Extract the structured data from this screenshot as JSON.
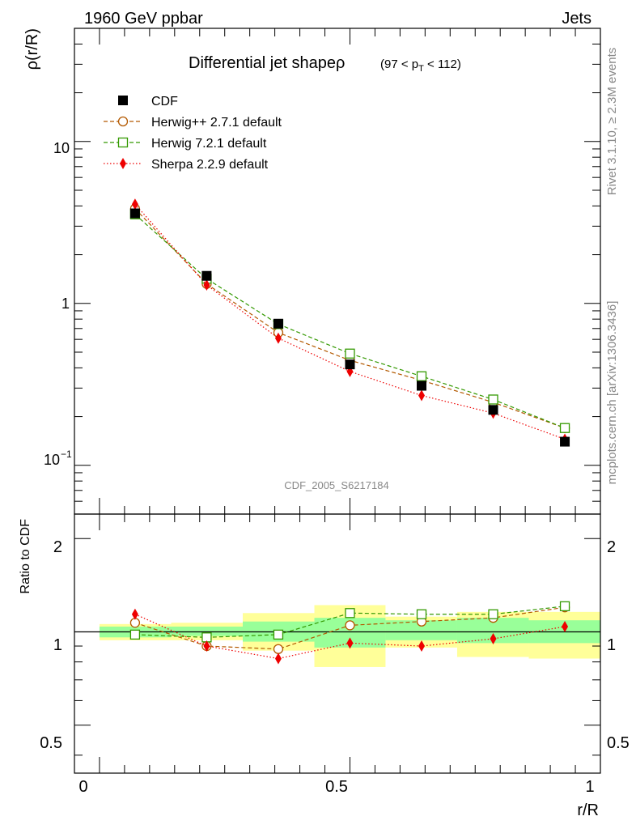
{
  "header": {
    "left": "1960 GeV ppbar",
    "right": "Jets"
  },
  "side": {
    "top": "Rivet 3.1.10, ≥ 2.3M events",
    "bottom": "mcplots.cern.ch [arXiv:1306.3436]"
  },
  "colors": {
    "cdf": "#000000",
    "herwigpp": "#b35900",
    "herwig7": "#339900",
    "sherpa": "#ee0000",
    "band_inner": "#99ff99",
    "band_outer": "#ffff99"
  },
  "chart_data": [
    {
      "type": "scatter",
      "title": "Differential jet shapeρ",
      "subtitle": {
        "main": "(97 < p",
        "sub": "T",
        "tail": " < 112)"
      },
      "ylabel": "ρ(r/R)",
      "xlabel": "r/R",
      "xlim": [
        -0.05,
        1.0
      ],
      "ylim": [
        0.05,
        50
      ],
      "yscale": "log",
      "yticks": [
        {
          "value": 10,
          "label": "10"
        },
        {
          "value": 1,
          "label": "1"
        },
        {
          "value": 0.1,
          "label": "10",
          "sup": "−1"
        }
      ],
      "watermark": "CDF_2005_S6217184",
      "x": [
        0.071,
        0.214,
        0.357,
        0.5,
        0.643,
        0.786,
        0.929
      ],
      "series": [
        {
          "key": "cdf",
          "name": "CDF",
          "values": [
            3.6,
            1.48,
            0.75,
            0.42,
            0.31,
            0.22,
            0.14
          ],
          "marker": "square-filled",
          "line": "none"
        },
        {
          "key": "herwigpp",
          "name": "Herwig++ 2.7.1 default",
          "values": [
            3.85,
            1.32,
            0.66,
            0.445,
            0.335,
            0.245,
            0.17
          ],
          "marker": "circle-open",
          "line": "dashed"
        },
        {
          "key": "herwig7",
          "name": "Herwig 7.2.1 default",
          "values": [
            3.55,
            1.42,
            0.745,
            0.49,
            0.355,
            0.255,
            0.17
          ],
          "marker": "square-open",
          "line": "dashed"
        },
        {
          "key": "sherpa",
          "name": "Sherpa 2.2.9 default",
          "values": [
            4.1,
            1.3,
            0.61,
            0.38,
            0.27,
            0.21,
            0.145
          ],
          "marker": "diamond-filled",
          "line": "dotted"
        }
      ]
    },
    {
      "type": "scatter",
      "title": "",
      "ylabel": "Ratio to CDF",
      "xlabel": "r/R",
      "xlim": [
        -0.05,
        1.0
      ],
      "ylim": [
        0.35,
        2.4
      ],
      "yscale": "log",
      "yticks": [
        {
          "value": 2,
          "label": "2"
        },
        {
          "value": 1,
          "label": "1"
        },
        {
          "value": 0.5,
          "label": "0.5"
        }
      ],
      "xticks": [
        {
          "value": 0,
          "label": "0"
        },
        {
          "value": 0.5,
          "label": "0.5"
        },
        {
          "value": 1,
          "label": "1"
        }
      ],
      "bands": [
        {
          "x0": 0.0,
          "x1": 0.143,
          "inner": [
            0.96,
            1.04
          ],
          "outer": [
            0.94,
            1.06
          ]
        },
        {
          "x0": 0.143,
          "x1": 0.286,
          "inner": [
            0.97,
            1.04
          ],
          "outer": [
            0.94,
            1.07
          ]
        },
        {
          "x0": 0.286,
          "x1": 0.429,
          "inner": [
            0.93,
            1.08
          ],
          "outer": [
            0.87,
            1.15
          ]
        },
        {
          "x0": 0.429,
          "x1": 0.571,
          "inner": [
            0.89,
            1.11
          ],
          "outer": [
            0.77,
            1.22
          ]
        },
        {
          "x0": 0.571,
          "x1": 0.714,
          "inner": [
            0.94,
            1.09
          ],
          "outer": [
            0.89,
            1.12
          ]
        },
        {
          "x0": 0.714,
          "x1": 0.857,
          "inner": [
            0.92,
            1.11
          ],
          "outer": [
            0.83,
            1.16
          ]
        },
        {
          "x0": 0.857,
          "x1": 1.0,
          "inner": [
            0.92,
            1.09
          ],
          "outer": [
            0.82,
            1.16
          ]
        }
      ],
      "series": [
        {
          "key": "herwigpp",
          "name": "Herwig++ 2.7.1 default",
          "values": [
            1.07,
            0.9,
            0.88,
            1.05,
            1.08,
            1.11,
            1.2
          ]
        },
        {
          "key": "herwig7",
          "name": "Herwig 7.2.1 default",
          "values": [
            0.98,
            0.96,
            0.98,
            1.15,
            1.14,
            1.14,
            1.21
          ]
        },
        {
          "key": "sherpa",
          "name": "Sherpa 2.2.9 default",
          "values": [
            1.14,
            0.9,
            0.82,
            0.92,
            0.9,
            0.95,
            1.04
          ]
        }
      ]
    }
  ]
}
